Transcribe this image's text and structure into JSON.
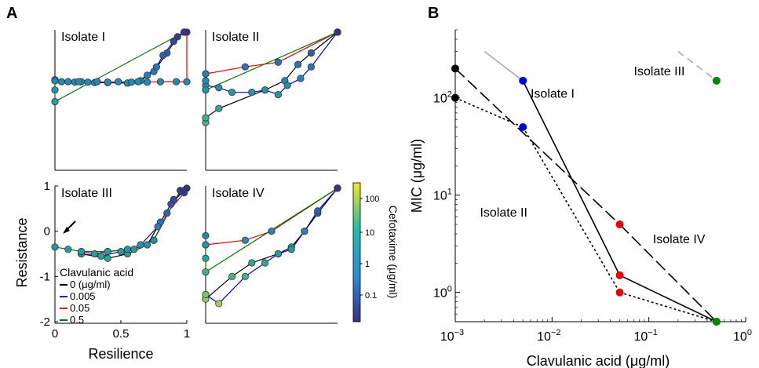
{
  "panels": {
    "a": "A",
    "b": "B"
  },
  "chart_data": [
    {
      "type": "line",
      "panel": "A",
      "xlabel": "Resilience",
      "ylabel": "Resistance",
      "xlim": [
        0,
        1
      ],
      "ylim": [
        -2,
        1
      ],
      "x_ticks": [
        "0",
        "0.5",
        "1"
      ],
      "y_ticks": [
        "1",
        "0",
        "-1",
        "-2"
      ],
      "colorbar": {
        "label": "Cefotaxime (μg/ml)",
        "ticks": [
          "100",
          "10",
          "1",
          "0.1"
        ],
        "scale": "log",
        "colors": [
          "#f7e620",
          "#21bcaa",
          "#2a8cd9",
          "#3a2d86"
        ]
      },
      "legend": {
        "title": "Clavulanic acid",
        "entries": [
          {
            "label": "0 (μg/ml)",
            "color": "#000000"
          },
          {
            "label": "0.005",
            "color": "#0000ee"
          },
          {
            "label": "0.05",
            "color": "#ee0000"
          },
          {
            "label": "0.5",
            "color": "#007700"
          }
        ]
      },
      "annotation": "arrow at Isolate III start point",
      "subplots": [
        {
          "title": "Isolate I",
          "series": [
            {
              "name": "0 (μg/ml)",
              "color": "#000000",
              "points": [
                [
                  0,
                  -0.1
                ],
                [
                  0.15,
                  -0.13
                ],
                [
                  0.3,
                  -0.14
                ],
                [
                  0.55,
                  -0.15
                ],
                [
                  0.65,
                  -0.1
                ],
                [
                  0.75,
                  0.1
                ],
                [
                  0.85,
                  0.5
                ],
                [
                  0.93,
                  0.85
                ],
                [
                  0.98,
                  0.95
                ]
              ]
            },
            {
              "name": "0.005",
              "color": "#0000ee",
              "points": [
                [
                  0,
                  -0.1
                ],
                [
                  0.2,
                  -0.12
                ],
                [
                  0.4,
                  -0.14
                ],
                [
                  0.55,
                  -0.15
                ],
                [
                  0.63,
                  -0.12
                ],
                [
                  0.7,
                  0.02
                ],
                [
                  0.77,
                  0.2
                ],
                [
                  0.82,
                  0.45
                ],
                [
                  0.9,
                  0.75
                ],
                [
                  0.98,
                  0.95
                ]
              ]
            },
            {
              "name": "0.05",
              "color": "#ee0000",
              "points": [
                [
                  0,
                  -0.08
                ],
                [
                  0.05,
                  -0.12
                ],
                [
                  0.1,
                  -0.12
                ],
                [
                  0.18,
                  -0.12
                ],
                [
                  0.25,
                  -0.13
                ],
                [
                  0.32,
                  -0.12
                ],
                [
                  0.4,
                  -0.13
                ],
                [
                  0.48,
                  -0.12
                ],
                [
                  0.58,
                  -0.13
                ],
                [
                  0.7,
                  -0.13
                ],
                [
                  0.8,
                  -0.12
                ],
                [
                  0.92,
                  -0.12
                ],
                [
                  1.0,
                  -0.12
                ],
                [
                  1.0,
                  0.95
                ]
              ]
            },
            {
              "name": "0.5",
              "color": "#007700",
              "points": [
                [
                  0,
                  -0.08
                ],
                [
                  0,
                  -0.1
                ],
                [
                  0,
                  -0.3
                ],
                [
                  0,
                  -0.55
                ],
                [
                  0.98,
                  0.95
                ]
              ]
            }
          ]
        },
        {
          "title": "Isolate II",
          "series": [
            {
              "name": "0 (μg/ml)",
              "color": "#000000",
              "points": [
                [
                  0,
                  -1.0
                ],
                [
                  0,
                  -0.9
                ],
                [
                  0.1,
                  -0.7
                ],
                [
                  0.45,
                  -0.3
                ],
                [
                  0.6,
                  -0.1
                ],
                [
                  0.7,
                  0.25
                ],
                [
                  0.8,
                  0.5
                ],
                [
                  1.0,
                  0.95
                ]
              ]
            },
            {
              "name": "0.005",
              "color": "#0000ee",
              "points": [
                [
                  0,
                  -0.2
                ],
                [
                  0.1,
                  -0.25
                ],
                [
                  0.2,
                  -0.35
                ],
                [
                  0.35,
                  -0.35
                ],
                [
                  0.45,
                  -0.3
                ],
                [
                  0.55,
                  -0.4
                ],
                [
                  0.62,
                  -0.2
                ],
                [
                  0.72,
                  -0.05
                ],
                [
                  0.8,
                  0.2
                ],
                [
                  1.0,
                  0.95
                ]
              ]
            },
            {
              "name": "0.05",
              "color": "#ee0000",
              "points": [
                [
                  0,
                  0.05
                ],
                [
                  0.3,
                  0.2
                ],
                [
                  0.55,
                  0.3
                ],
                [
                  1.0,
                  0.95
                ]
              ]
            },
            {
              "name": "0.5",
              "color": "#007700",
              "points": [
                [
                  0,
                  0.05
                ],
                [
                  0,
                  -0.1
                ],
                [
                  0,
                  -0.3
                ],
                [
                  1.0,
                  0.95
                ]
              ]
            }
          ]
        },
        {
          "title": "Isolate III",
          "series": [
            {
              "name": "0 (μg/ml)",
              "color": "#000000",
              "points": [
                [
                  0.2,
                  -0.5
                ],
                [
                  0.4,
                  -0.6
                ],
                [
                  0.55,
                  -0.5
                ],
                [
                  0.7,
                  -0.3
                ],
                [
                  0.8,
                  0.2
                ],
                [
                  0.9,
                  0.7
                ],
                [
                  1.0,
                  0.95
                ]
              ]
            },
            {
              "name": "0.005",
              "color": "#0000ee",
              "points": [
                [
                  0.2,
                  -0.5
                ],
                [
                  0.35,
                  -0.55
                ],
                [
                  0.5,
                  -0.45
                ],
                [
                  0.65,
                  -0.3
                ],
                [
                  0.78,
                  0.1
                ],
                [
                  0.88,
                  0.6
                ],
                [
                  0.98,
                  0.9
                ]
              ]
            },
            {
              "name": "0.05",
              "color": "#ee0000",
              "points": [
                [
                  0.2,
                  -0.45
                ],
                [
                  0.3,
                  -0.5
                ],
                [
                  0.4,
                  -0.45
                ],
                [
                  0.55,
                  -0.4
                ],
                [
                  0.75,
                  -0.2
                ],
                [
                  0.85,
                  0.4
                ],
                [
                  0.98,
                  0.85
                ]
              ]
            },
            {
              "name": "0.5",
              "color": "#007700",
              "points": [
                [
                  0,
                  -0.35
                ],
                [
                  0.1,
                  -0.4
                ],
                [
                  0.2,
                  -0.45
                ],
                [
                  0.4,
                  -0.45
                ],
                [
                  0.6,
                  -0.4
                ],
                [
                  0.75,
                  -0.2
                ],
                [
                  0.95,
                  0.9
                ]
              ]
            }
          ]
        },
        {
          "title": "Isolate IV",
          "series": [
            {
              "name": "0 (μg/ml)",
              "color": "#000000",
              "points": [
                [
                  0,
                  -1.5
                ],
                [
                  0.2,
                  -1.0
                ],
                [
                  0.35,
                  -0.7
                ],
                [
                  0.55,
                  -0.5
                ],
                [
                  0.65,
                  -0.35
                ],
                [
                  0.75,
                  0.0
                ],
                [
                  0.85,
                  0.4
                ],
                [
                  1.0,
                  0.95
                ]
              ]
            },
            {
              "name": "0.005",
              "color": "#0000ee",
              "points": [
                [
                  0,
                  -1.4
                ],
                [
                  0.1,
                  -1.6
                ],
                [
                  0.3,
                  -1.0
                ],
                [
                  0.45,
                  -0.7
                ],
                [
                  0.55,
                  -0.5
                ],
                [
                  0.65,
                  -0.4
                ],
                [
                  0.75,
                  0.0
                ],
                [
                  0.85,
                  0.45
                ],
                [
                  1.0,
                  0.95
                ]
              ]
            },
            {
              "name": "0.05",
              "color": "#ee0000",
              "points": [
                [
                  0,
                  -0.3
                ],
                [
                  0.3,
                  -0.2
                ],
                [
                  0.5,
                  0.0
                ],
                [
                  1.0,
                  0.95
                ]
              ]
            },
            {
              "name": "0.5",
              "color": "#007700",
              "points": [
                [
                  0,
                  -0.1
                ],
                [
                  0,
                  -0.3
                ],
                [
                  0,
                  -0.6
                ],
                [
                  0,
                  -0.9
                ],
                [
                  1.0,
                  0.95
                ]
              ]
            }
          ]
        }
      ]
    },
    {
      "type": "line",
      "panel": "B",
      "xlabel": "Clavulanic acid (μg/ml)",
      "ylabel": "MIC (μg/ml)",
      "xscale": "log",
      "yscale": "log",
      "xlim": [
        0.001,
        1
      ],
      "ylim": [
        0.5,
        500
      ],
      "x_ticks": [
        "10",
        "10",
        "10",
        "10"
      ],
      "x_tick_exponents": [
        "−3",
        "−2",
        "−1",
        "0"
      ],
      "y_ticks": [
        "10",
        "10",
        "10"
      ],
      "y_tick_exponents": [
        "0",
        "1",
        "2"
      ],
      "dot_colors_by_concentration": {
        "0": "#000000",
        "0.005": "#0000ee",
        "0.05": "#ee0000",
        "0.5": "#008800"
      },
      "series": [
        {
          "name": "Isolate I",
          "style": "solid",
          "x": [
            0.002,
            0.005,
            0.05,
            0.5
          ],
          "y": [
            300,
            150,
            1.5,
            0.5
          ],
          "gray_first_segment": true
        },
        {
          "name": "Isolate II",
          "style": "dotted",
          "x": [
            0.001,
            0.005,
            0.05,
            0.5
          ],
          "y": [
            100,
            50,
            1.0,
            0.5
          ]
        },
        {
          "name": "Isolate III",
          "style": "dashed",
          "x": [
            0.2,
            0.5
          ],
          "y": [
            300,
            150
          ],
          "gray_first_segment": true
        },
        {
          "name": "Isolate IV",
          "style": "long-dash",
          "x": [
            0.001,
            0.05,
            0.5
          ],
          "y": [
            200,
            5,
            0.5
          ]
        }
      ],
      "series_labels": [
        {
          "text": "Isolate I",
          "x": 0.006,
          "y": 100
        },
        {
          "text": "Isolate II",
          "x": 0.0018,
          "y": 6
        },
        {
          "text": "Isolate III",
          "x": 0.07,
          "y": 170
        },
        {
          "text": "Isolate IV",
          "x": 0.11,
          "y": 3.2
        }
      ]
    }
  ]
}
